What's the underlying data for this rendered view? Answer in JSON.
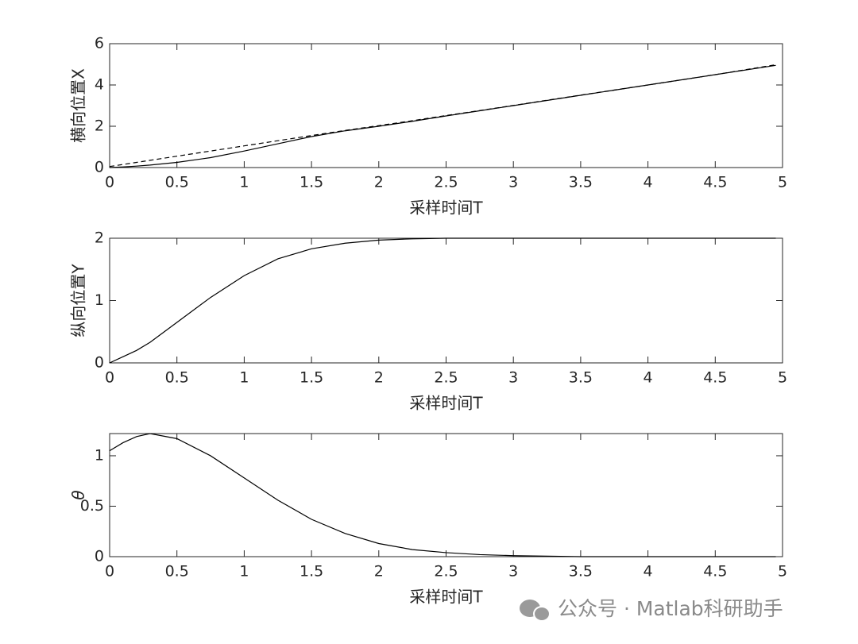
{
  "chart_data": [
    {
      "type": "line",
      "ylabel": "横向位置X",
      "xlabel": "采样时间T",
      "x": [
        0,
        0.1,
        0.2,
        0.3,
        0.5,
        0.75,
        1,
        1.25,
        1.5,
        1.75,
        2,
        2.25,
        2.5,
        2.75,
        3,
        3.5,
        4,
        4.5,
        4.95
      ],
      "series": [
        {
          "color": "#000000",
          "line_style": "solid",
          "values": [
            0,
            0.03,
            0.07,
            0.12,
            0.25,
            0.48,
            0.8,
            1.15,
            1.5,
            1.78,
            2.0,
            2.24,
            2.5,
            2.75,
            3.0,
            3.5,
            4.0,
            4.5,
            4.95
          ]
        },
        {
          "color": "#000000",
          "line_style": "dashed",
          "values": [
            0.05,
            0.15,
            0.25,
            0.35,
            0.55,
            0.8,
            1.05,
            1.3,
            1.55,
            1.8,
            2.03,
            2.27,
            2.52,
            2.76,
            3.01,
            3.51,
            4.0,
            4.5,
            4.98
          ]
        }
      ],
      "xlim": [
        0,
        5
      ],
      "xticks": [
        0,
        0.5,
        1,
        1.5,
        2,
        2.5,
        3,
        3.5,
        4,
        4.5,
        5
      ],
      "ylim": [
        0,
        6
      ],
      "yticks": [
        0,
        2,
        4,
        6
      ]
    },
    {
      "type": "line",
      "ylabel": "纵向位置Y",
      "xlabel": "采样时间T",
      "x": [
        0,
        0.1,
        0.2,
        0.3,
        0.5,
        0.75,
        1,
        1.25,
        1.5,
        1.75,
        2,
        2.25,
        2.5,
        2.75,
        3,
        3.5,
        4,
        4.5,
        4.95
      ],
      "series": [
        {
          "color": "#000000",
          "line_style": "solid",
          "values": [
            0,
            0.1,
            0.2,
            0.33,
            0.65,
            1.05,
            1.4,
            1.67,
            1.83,
            1.92,
            1.97,
            1.99,
            2,
            2,
            2,
            2,
            2,
            2,
            2
          ]
        }
      ],
      "xlim": [
        0,
        5
      ],
      "xticks": [
        0,
        0.5,
        1,
        1.5,
        2,
        2.5,
        3,
        3.5,
        4,
        4.5,
        5
      ],
      "ylim": [
        0,
        2
      ],
      "yticks": [
        0,
        1,
        2
      ]
    },
    {
      "type": "line",
      "ylabel": "θ",
      "xlabel": "采样时间T",
      "x": [
        0,
        0.1,
        0.2,
        0.3,
        0.5,
        0.75,
        1,
        1.25,
        1.5,
        1.75,
        2,
        2.25,
        2.5,
        2.75,
        3,
        3.5,
        4,
        4.5,
        4.95
      ],
      "series": [
        {
          "color": "#000000",
          "line_style": "solid",
          "values": [
            1.05,
            1.13,
            1.19,
            1.22,
            1.17,
            1.0,
            0.78,
            0.56,
            0.37,
            0.23,
            0.13,
            0.07,
            0.04,
            0.02,
            0.01,
            0,
            0,
            0,
            0
          ]
        }
      ],
      "xlim": [
        0,
        5
      ],
      "xticks": [
        0,
        0.5,
        1,
        1.5,
        2,
        2.5,
        3,
        3.5,
        4,
        4.5,
        5
      ],
      "ylim": [
        0,
        1.22
      ],
      "yticks": [
        0,
        0.5,
        1
      ]
    }
  ],
  "watermark": "公众号 · Matlab科研助手"
}
